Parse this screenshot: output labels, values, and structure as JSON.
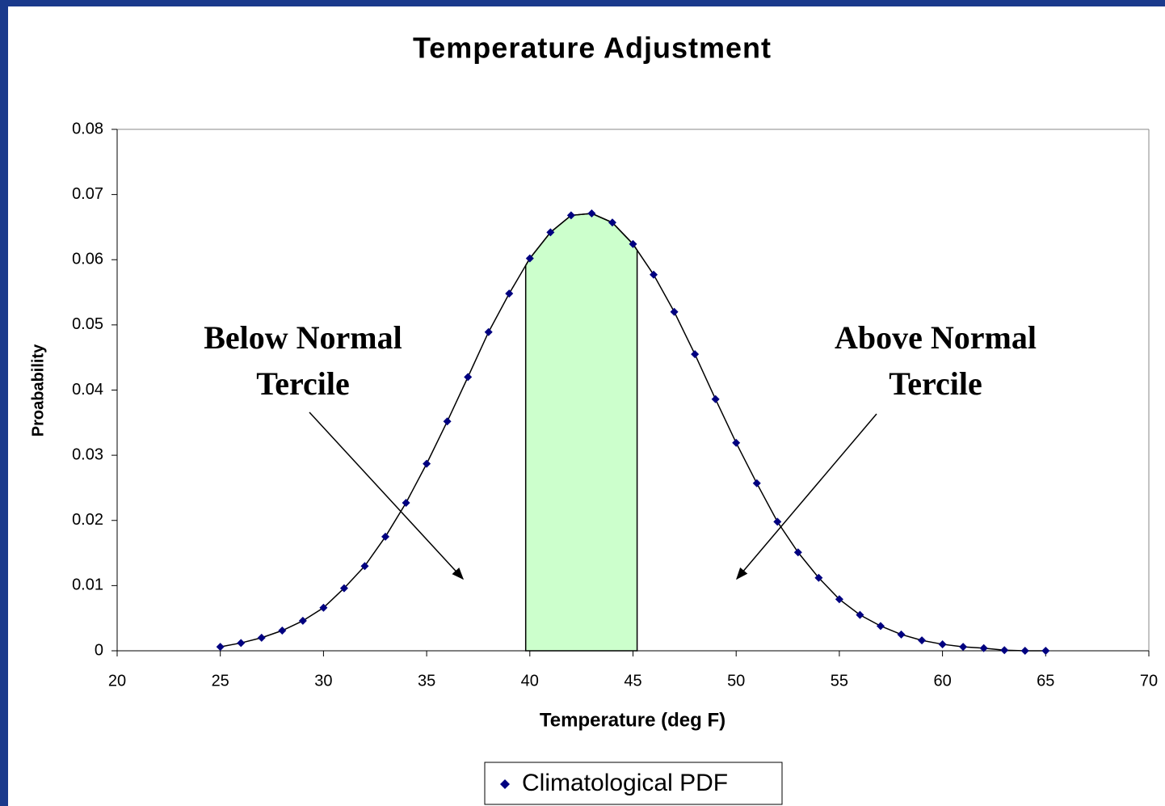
{
  "chart_data": {
    "type": "scatter-line",
    "title": "Temperature Adjustment",
    "x_label": "Temperature (deg F)",
    "y_label": "Proabability",
    "x": [
      25,
      26,
      27,
      28,
      29,
      30,
      31,
      32,
      33,
      34,
      35,
      36,
      37,
      38,
      39,
      40,
      41,
      42,
      43,
      44,
      45,
      46,
      47,
      48,
      49,
      50,
      51,
      52,
      53,
      54,
      55,
      56,
      57,
      58,
      59,
      60,
      61,
      62,
      63,
      64,
      65
    ],
    "series": [
      {
        "name": "Climatological PDF",
        "color": "#000080",
        "values": [
          0.0006,
          0.0012,
          0.002,
          0.0031,
          0.0046,
          0.0066,
          0.0096,
          0.013,
          0.0175,
          0.0227,
          0.0287,
          0.0352,
          0.042,
          0.0489,
          0.0548,
          0.0602,
          0.0642,
          0.0668,
          0.0671,
          0.0657,
          0.0624,
          0.0577,
          0.052,
          0.0455,
          0.0386,
          0.0319,
          0.0257,
          0.0198,
          0.0151,
          0.0112,
          0.0079,
          0.0055,
          0.0038,
          0.0025,
          0.0016,
          0.001,
          0.0006,
          0.0004,
          0.0001,
          0,
          0
        ]
      }
    ],
    "xlim": [
      20,
      70
    ],
    "xticks": [
      20,
      25,
      30,
      35,
      40,
      45,
      50,
      55,
      60,
      65,
      70
    ],
    "ylim": [
      0,
      0.08
    ],
    "yticks": [
      0,
      0.01,
      0.02,
      0.03,
      0.04,
      0.05,
      0.06,
      0.07,
      0.08
    ],
    "highlight": {
      "x": [
        39.8,
        45.2
      ],
      "color": "#ccffcc"
    },
    "annotations": [
      {
        "lines": [
          "Below Normal",
          "Tercile"
        ]
      },
      {
        "lines": [
          "Above Normal",
          "Tercile"
        ]
      }
    ],
    "legend": "bottom"
  }
}
